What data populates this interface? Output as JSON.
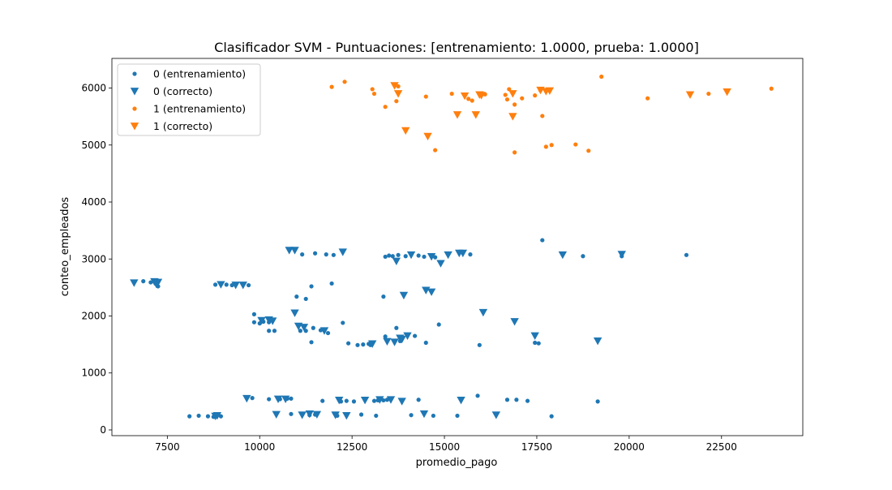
{
  "chart_data": {
    "type": "scatter",
    "title": "Clasificador SVM - Puntuaciones: [entrenamiento: 1.0000, prueba: 1.0000]",
    "xlabel": "promedio_pago",
    "ylabel": "conteo_empleados",
    "xlim": [
      6000,
      24700
    ],
    "ylim": [
      -100,
      6520
    ],
    "x_ticks": [
      7500,
      10000,
      12500,
      15000,
      17500,
      20000,
      22500
    ],
    "y_ticks": [
      0,
      1000,
      2000,
      3000,
      4000,
      5000,
      6000
    ],
    "grid": false,
    "legend_position": "upper-left",
    "colors": {
      "class0": "#1f77b4",
      "class1": "#ff7f0e"
    },
    "series": [
      {
        "name": "0 (entrenamiento)",
        "marker": "circle",
        "color": "#1f77b4",
        "points": [
          [
            6850,
            2610
          ],
          [
            7050,
            2590
          ],
          [
            7150,
            2600
          ],
          [
            7250,
            2520
          ],
          [
            8100,
            240
          ],
          [
            8350,
            250
          ],
          [
            8600,
            240
          ],
          [
            8750,
            230
          ],
          [
            8800,
            250
          ],
          [
            8850,
            260
          ],
          [
            8950,
            240
          ],
          [
            8800,
            2550
          ],
          [
            9100,
            2550
          ],
          [
            9250,
            2540
          ],
          [
            9700,
            2540
          ],
          [
            9850,
            2030
          ],
          [
            9850,
            1890
          ],
          [
            10000,
            1870
          ],
          [
            10100,
            1900
          ],
          [
            10250,
            1890
          ],
          [
            10250,
            1740
          ],
          [
            10400,
            1740
          ],
          [
            9800,
            560
          ],
          [
            10250,
            540
          ],
          [
            10550,
            540
          ],
          [
            10750,
            550
          ],
          [
            10850,
            550
          ],
          [
            10850,
            280
          ],
          [
            11000,
            2340
          ],
          [
            11250,
            2300
          ],
          [
            11400,
            2520
          ],
          [
            11950,
            2570
          ],
          [
            11100,
            1740
          ],
          [
            11250,
            1740
          ],
          [
            11450,
            1790
          ],
          [
            11650,
            1750
          ],
          [
            11400,
            1540
          ],
          [
            11850,
            1700
          ],
          [
            12250,
            1880
          ],
          [
            11150,
            3080
          ],
          [
            11500,
            3100
          ],
          [
            11800,
            3080
          ],
          [
            12000,
            3070
          ],
          [
            11350,
            260
          ],
          [
            11500,
            270
          ],
          [
            11700,
            510
          ],
          [
            12100,
            250
          ],
          [
            12200,
            500
          ],
          [
            12350,
            510
          ],
          [
            12550,
            500
          ],
          [
            12750,
            270
          ],
          [
            12400,
            1520
          ],
          [
            12650,
            1490
          ],
          [
            12800,
            1500
          ],
          [
            12950,
            1510
          ],
          [
            13000,
            1490
          ],
          [
            13100,
            510
          ],
          [
            13200,
            520
          ],
          [
            13350,
            520
          ],
          [
            13450,
            530
          ],
          [
            13150,
            250
          ],
          [
            13400,
            3040
          ],
          [
            13500,
            3060
          ],
          [
            13600,
            3050
          ],
          [
            13750,
            3070
          ],
          [
            13950,
            3050
          ],
          [
            14100,
            3080
          ],
          [
            14300,
            3060
          ],
          [
            13350,
            2340
          ],
          [
            13400,
            1640
          ],
          [
            13700,
            1790
          ],
          [
            13800,
            1560
          ],
          [
            14200,
            1650
          ],
          [
            14500,
            1530
          ],
          [
            14850,
            1850
          ],
          [
            14300,
            530
          ],
          [
            14450,
            3040
          ],
          [
            14650,
            3060
          ],
          [
            14750,
            3030
          ],
          [
            14100,
            260
          ],
          [
            14700,
            250
          ],
          [
            15350,
            250
          ],
          [
            15700,
            3080
          ],
          [
            15900,
            600
          ],
          [
            15950,
            1490
          ],
          [
            16700,
            530
          ],
          [
            16950,
            530
          ],
          [
            17250,
            510
          ],
          [
            17450,
            1530
          ],
          [
            17550,
            1520
          ],
          [
            17650,
            3330
          ],
          [
            17900,
            240
          ],
          [
            18750,
            3050
          ],
          [
            19150,
            500
          ],
          [
            19800,
            3050
          ],
          [
            21550,
            3070
          ]
        ]
      },
      {
        "name": "0 (correcto)",
        "marker": "triangle-down",
        "color": "#1f77b4",
        "points": [
          [
            6600,
            2580
          ],
          [
            7150,
            2600
          ],
          [
            7200,
            2560
          ],
          [
            7250,
            2590
          ],
          [
            8800,
            240
          ],
          [
            8850,
            250
          ],
          [
            8950,
            2550
          ],
          [
            9350,
            2540
          ],
          [
            9550,
            2540
          ],
          [
            9650,
            550
          ],
          [
            10050,
            1920
          ],
          [
            10250,
            1930
          ],
          [
            10350,
            1910
          ],
          [
            10450,
            270
          ],
          [
            10500,
            540
          ],
          [
            10700,
            540
          ],
          [
            10800,
            3150
          ],
          [
            10950,
            3150
          ],
          [
            10950,
            2050
          ],
          [
            11050,
            1820
          ],
          [
            11200,
            1800
          ],
          [
            11150,
            260
          ],
          [
            11350,
            280
          ],
          [
            11550,
            270
          ],
          [
            11750,
            1740
          ],
          [
            12050,
            260
          ],
          [
            12150,
            520
          ],
          [
            12250,
            3120
          ],
          [
            12350,
            250
          ],
          [
            12850,
            520
          ],
          [
            13050,
            1510
          ],
          [
            13250,
            530
          ],
          [
            13550,
            530
          ],
          [
            13450,
            1550
          ],
          [
            13700,
            2960
          ],
          [
            13650,
            1540
          ],
          [
            13800,
            1610
          ],
          [
            13850,
            1590
          ],
          [
            13850,
            500
          ],
          [
            13900,
            2360
          ],
          [
            14000,
            1650
          ],
          [
            14100,
            3070
          ],
          [
            14450,
            280
          ],
          [
            14500,
            2450
          ],
          [
            14650,
            3040
          ],
          [
            14650,
            2420
          ],
          [
            14900,
            2920
          ],
          [
            15100,
            3070
          ],
          [
            15400,
            3100
          ],
          [
            15500,
            3100
          ],
          [
            15450,
            520
          ],
          [
            16050,
            2060
          ],
          [
            16400,
            260
          ],
          [
            16900,
            1900
          ],
          [
            17450,
            1650
          ],
          [
            18200,
            3070
          ],
          [
            19150,
            1560
          ],
          [
            19800,
            3080
          ]
        ]
      },
      {
        "name": "1 (entrenamiento)",
        "marker": "circle",
        "color": "#ff7f0e",
        "points": [
          [
            11950,
            6020
          ],
          [
            12300,
            6110
          ],
          [
            13050,
            5980
          ],
          [
            13100,
            5900
          ],
          [
            13400,
            5670
          ],
          [
            13700,
            5770
          ],
          [
            13750,
            6030
          ],
          [
            14500,
            5850
          ],
          [
            14750,
            4910
          ],
          [
            15200,
            5900
          ],
          [
            15650,
            5810
          ],
          [
            15750,
            5780
          ],
          [
            16100,
            5890
          ],
          [
            16650,
            5880
          ],
          [
            16750,
            5980
          ],
          [
            16900,
            5710
          ],
          [
            16900,
            4870
          ],
          [
            17100,
            5820
          ],
          [
            17450,
            5870
          ],
          [
            17650,
            5510
          ],
          [
            17750,
            4970
          ],
          [
            17900,
            5000
          ],
          [
            18550,
            5010
          ],
          [
            18900,
            4900
          ],
          [
            19250,
            6200
          ],
          [
            20500,
            5820
          ],
          [
            22150,
            5900
          ],
          [
            23850,
            5990
          ],
          [
            16700,
            5800
          ],
          [
            17600,
            5960
          ]
        ]
      },
      {
        "name": "1 (correcto)",
        "marker": "triangle-down",
        "color": "#ff7f0e",
        "points": [
          [
            13650,
            6040
          ],
          [
            13750,
            5900
          ],
          [
            13950,
            5250
          ],
          [
            14550,
            5150
          ],
          [
            15350,
            5530
          ],
          [
            15550,
            5860
          ],
          [
            15850,
            5530
          ],
          [
            15950,
            5880
          ],
          [
            16000,
            5870
          ],
          [
            16850,
            5500
          ],
          [
            16850,
            5900
          ],
          [
            17600,
            5960
          ],
          [
            17750,
            5940
          ],
          [
            17850,
            5950
          ],
          [
            21650,
            5880
          ],
          [
            22650,
            5930
          ]
        ]
      }
    ]
  }
}
